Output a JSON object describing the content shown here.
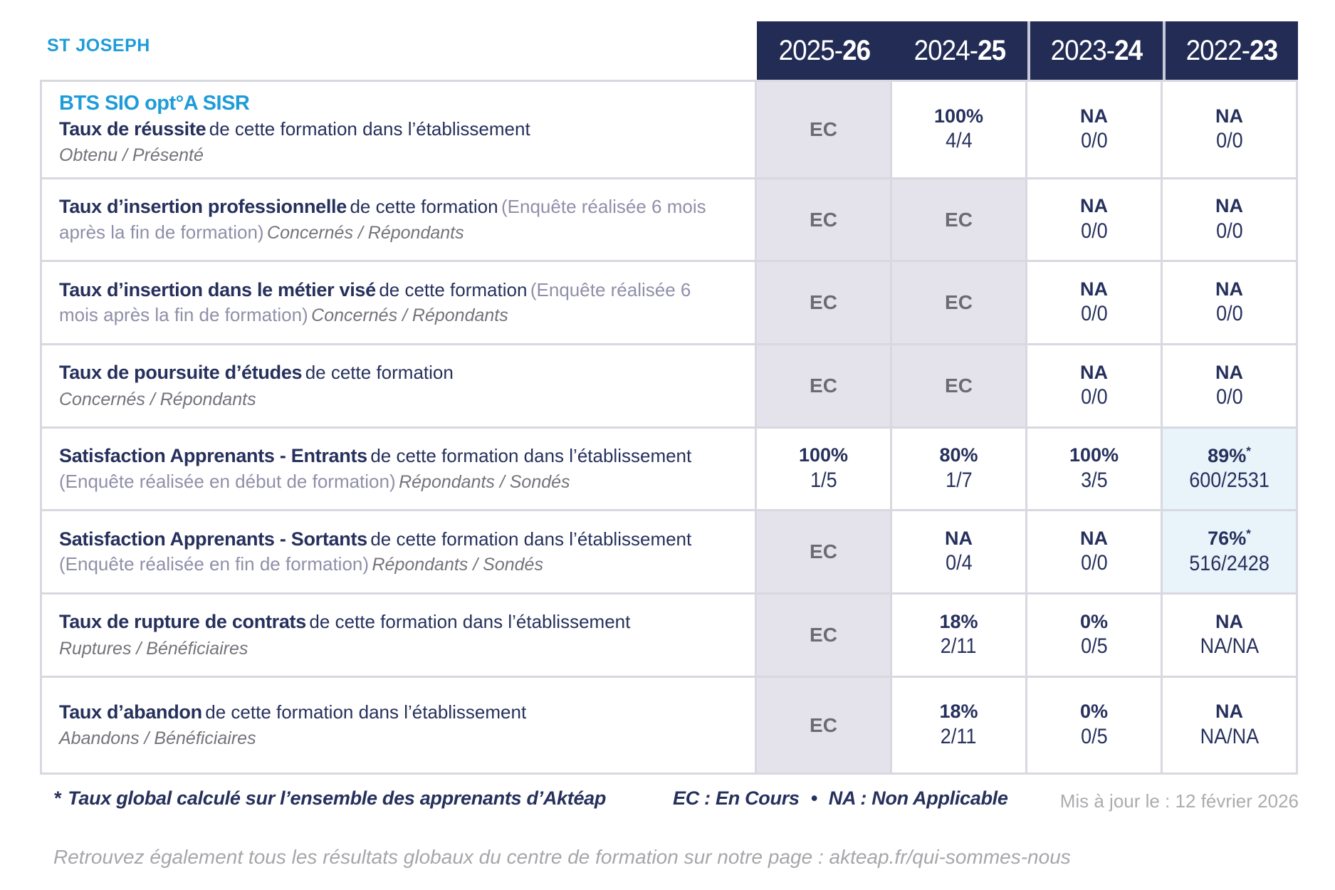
{
  "header": {
    "establishment": "ST JOSEPH",
    "years": [
      {
        "label": "2025-",
        "bold": "26"
      },
      {
        "label": "2024-",
        "bold": "25"
      },
      {
        "label": "2023-",
        "bold": "24"
      },
      {
        "label": "2022-",
        "bold": "23"
      }
    ]
  },
  "table": {
    "rows": [
      {
        "program": "BTS SIO opt°A SISR",
        "title": "Taux de réussite",
        "desc": "de cette formation dans l’établissement",
        "sub": "Obtenu / Présenté",
        "cells": [
          {
            "v": "EC"
          },
          {
            "v": "100%",
            "f": "4/4"
          },
          {
            "v": "NA",
            "f": "0/0"
          },
          {
            "v": "NA",
            "f": "0/0"
          }
        ]
      },
      {
        "title": "Taux d’insertion professionnelle",
        "desc": "de cette formation",
        "paren": "(Enquête réalisée 6 mois après la fin de formation)",
        "sub": "Concernés / Répondants",
        "cells": [
          {
            "v": "EC"
          },
          {
            "v": "EC"
          },
          {
            "v": "NA",
            "f": "0/0"
          },
          {
            "v": "NA",
            "f": "0/0"
          }
        ]
      },
      {
        "title": "Taux d’insertion dans le métier visé",
        "desc": "de cette formation",
        "paren": "(Enquête réalisée 6 mois après la fin de formation)",
        "sub": "Concernés / Répondants",
        "cells": [
          {
            "v": "EC"
          },
          {
            "v": "EC"
          },
          {
            "v": "NA",
            "f": "0/0"
          },
          {
            "v": "NA",
            "f": "0/0"
          }
        ]
      },
      {
        "title": "Taux de poursuite d’études",
        "desc": "de cette formation",
        "sub": "Concernés / Répondants",
        "cells": [
          {
            "v": "EC"
          },
          {
            "v": "EC"
          },
          {
            "v": "NA",
            "f": "0/0"
          },
          {
            "v": "NA",
            "f": "0/0"
          }
        ]
      },
      {
        "title": "Satisfaction Apprenants - Entrants",
        "desc": "de cette formation dans l’établissement",
        "paren": "(Enquête réalisée en début de formation)",
        "sub": "Répondants / Sondés",
        "cells": [
          {
            "v": "100%",
            "f": "1/5"
          },
          {
            "v": "80%",
            "f": "1/7"
          },
          {
            "v": "100%",
            "f": "3/5"
          },
          {
            "v": "89%",
            "star": "*",
            "f": "600/2531"
          }
        ]
      },
      {
        "title": "Satisfaction Apprenants - Sortants",
        "desc": "de cette formation dans l’établissement",
        "paren": "(Enquête réalisée en fin de formation)",
        "sub": "Répondants / Sondés",
        "cells": [
          {
            "v": "EC"
          },
          {
            "v": "NA",
            "f": "0/4"
          },
          {
            "v": "NA",
            "f": "0/0"
          },
          {
            "v": "76%",
            "star": "*",
            "f": "516/2428"
          }
        ]
      },
      {
        "title": "Taux de rupture de contrats",
        "desc": "de cette formation dans l’établissement",
        "sub": "Ruptures / Bénéficiaires",
        "cells": [
          {
            "v": "EC"
          },
          {
            "v": "18%",
            "f": "2/11"
          },
          {
            "v": "0%",
            "f": "0/5"
          },
          {
            "v": "NA",
            "f": "NA/NA"
          }
        ]
      },
      {
        "title": "Taux d’abandon",
        "desc": "de cette formation dans l’établissement",
        "sub": "Abandons / Bénéficiaires",
        "cells": [
          {
            "v": "EC"
          },
          {
            "v": "18%",
            "f": "2/11"
          },
          {
            "v": "0%",
            "f": "0/5"
          },
          {
            "v": "NA",
            "f": "NA/NA"
          }
        ]
      }
    ]
  },
  "footer": {
    "note_star": "*",
    "note": "Taux global calculé sur l’ensemble des apprenants d’Aktéap",
    "legend_ec": "EC : En Cours",
    "bullet": "•",
    "legend_na": "NA : Non Applicable",
    "updated": "Mis à jour le : 12 février 2026",
    "bottom": "Retrouvez également tous les résultats globaux du centre de formation sur notre page : akteap.fr/qui-sommes-nous"
  },
  "colors": {
    "accent_blue": "#1E9CD9",
    "header_navy": "#232C55",
    "text_navy": "#26305C",
    "ec_cell_bg": "#E4E3EC",
    "highlight_cell_bg": "#E9F3FA",
    "border": "#D8D8E1"
  }
}
